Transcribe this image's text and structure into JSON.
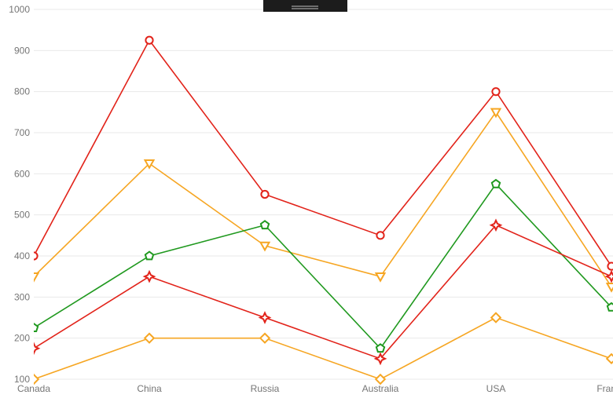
{
  "chart_data": {
    "type": "line",
    "title": "",
    "xlabel": "",
    "ylabel": "",
    "categories": [
      "Canada",
      "China",
      "Russia",
      "Australia",
      "USA",
      "France"
    ],
    "series": [
      {
        "name": "red-circle-series",
        "marker": "circle",
        "color": "#e2231a",
        "values": [
          400,
          925,
          550,
          450,
          800,
          375
        ]
      },
      {
        "name": "orange-triangle-series",
        "marker": "triangle-down",
        "color": "#f6a623",
        "values": [
          350,
          625,
          425,
          350,
          750,
          325
        ]
      },
      {
        "name": "green-pentagon-series",
        "marker": "pentagon",
        "color": "#20991f",
        "values": [
          225,
          400,
          475,
          175,
          575,
          275
        ]
      },
      {
        "name": "red-star-series",
        "marker": "four-point-star",
        "color": "#e2231a",
        "values": [
          175,
          350,
          250,
          150,
          475,
          350
        ]
      },
      {
        "name": "orange-diamond-series",
        "marker": "diamond",
        "color": "#f6a623",
        "values": [
          100,
          200,
          200,
          100,
          250,
          150
        ]
      }
    ],
    "ylim": [
      100,
      1000
    ],
    "y_ticks": [
      100,
      200,
      300,
      400,
      500,
      600,
      700,
      800,
      900,
      1000
    ],
    "grid": "horizontal",
    "legend_position": "none"
  },
  "styles": {
    "background": "#ffffff",
    "gridline_color": "#e9e9e9",
    "tick_label_color": "#757575",
    "marker_fill": "#ffffff"
  },
  "grip": {
    "background": "#1c1c1c",
    "line_color": "#8a8a8a"
  }
}
